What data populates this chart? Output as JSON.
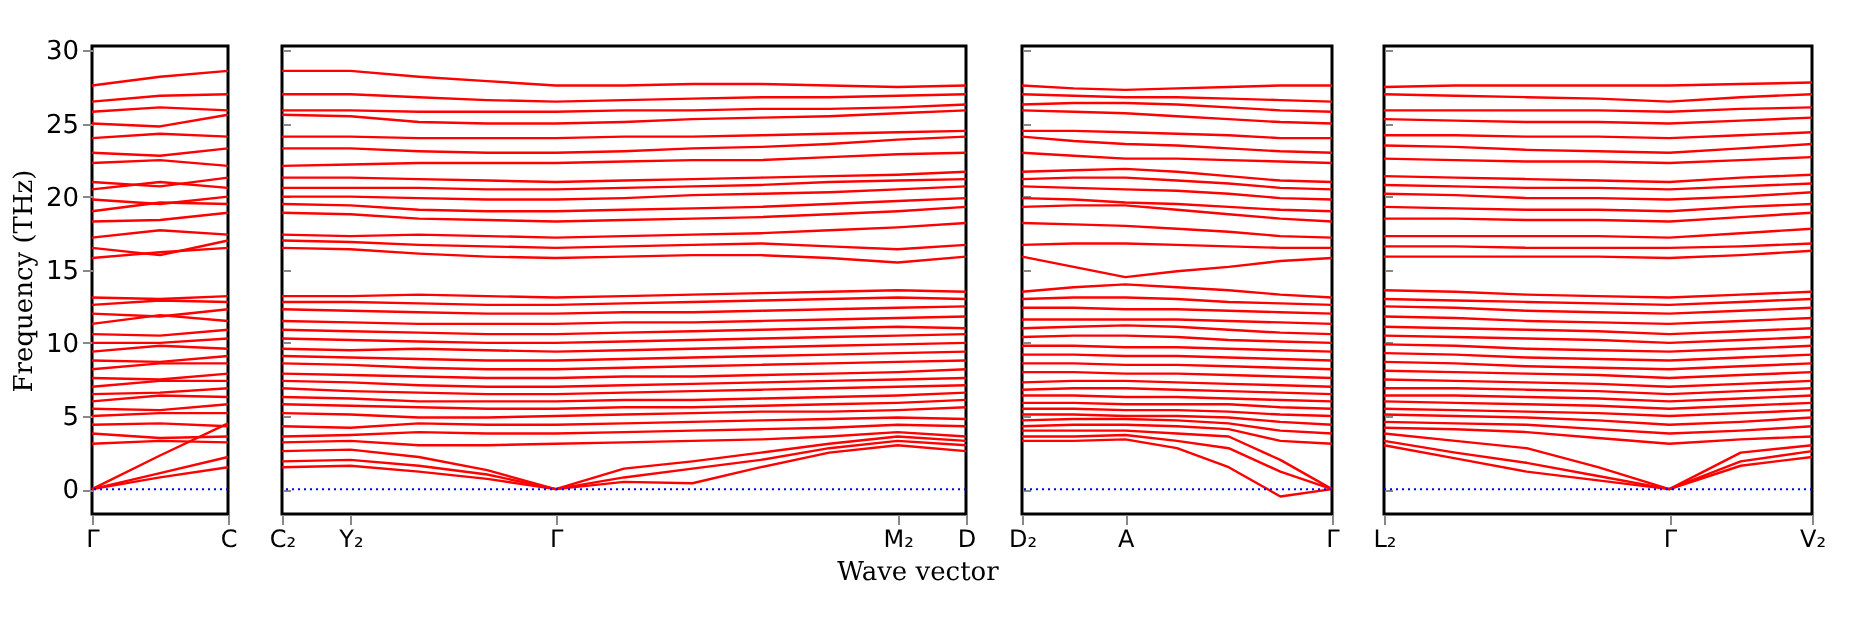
{
  "chart_data": [
    {
      "type": "line",
      "ylabel": "Frequency (THz)",
      "categories": [
        "Γ",
        null,
        "C"
      ],
      "ylim": [
        -1.7,
        30.3
      ],
      "yticks": [
        0,
        5,
        10,
        15,
        20,
        25,
        30
      ],
      "ref_lines": [
        {
          "axis": "y",
          "value": 0,
          "color": "#0000ff",
          "line_style": "dotted"
        }
      ],
      "series": [
        {
          "color": "#ff0000",
          "values": [
            0,
            0.8,
            1.5
          ]
        },
        {
          "color": "#ff0000",
          "values": [
            0,
            1.1,
            2.2
          ]
        },
        {
          "color": "#ff0000",
          "values": [
            0,
            2.3,
            4.5
          ]
        },
        {
          "color": "#ff0000",
          "values": [
            3.1,
            3.3,
            3.2
          ]
        },
        {
          "color": "#ff0000",
          "values": [
            3.8,
            3.5,
            3.6
          ]
        },
        {
          "color": "#ff0000",
          "values": [
            4.4,
            4.5,
            4.3
          ]
        },
        {
          "color": "#ff0000",
          "values": [
            5.0,
            5.2,
            5.2
          ]
        },
        {
          "color": "#ff0000",
          "values": [
            5.5,
            5.4,
            5.8
          ]
        },
        {
          "color": "#ff0000",
          "values": [
            6.0,
            6.4,
            6.3
          ]
        },
        {
          "color": "#ff0000",
          "values": [
            6.5,
            6.6,
            6.9
          ]
        },
        {
          "color": "#ff0000",
          "values": [
            7.0,
            7.4,
            7.4
          ]
        },
        {
          "color": "#ff0000",
          "values": [
            7.6,
            7.5,
            7.9
          ]
        },
        {
          "color": "#ff0000",
          "values": [
            8.2,
            8.6,
            8.6
          ]
        },
        {
          "color": "#ff0000",
          "values": [
            8.8,
            8.7,
            9.1
          ]
        },
        {
          "color": "#ff0000",
          "values": [
            9.4,
            9.8,
            9.6
          ]
        },
        {
          "color": "#ff0000",
          "values": [
            10.0,
            10.0,
            10.3
          ]
        },
        {
          "color": "#ff0000",
          "values": [
            10.6,
            10.5,
            10.9
          ]
        },
        {
          "color": "#ff0000",
          "values": [
            11.3,
            11.9,
            11.5
          ]
        },
        {
          "color": "#ff0000",
          "values": [
            12.0,
            11.8,
            12.3
          ]
        },
        {
          "color": "#ff0000",
          "values": [
            12.6,
            12.9,
            12.8
          ]
        },
        {
          "color": "#ff0000",
          "values": [
            13.1,
            13.0,
            13.2
          ]
        },
        {
          "color": "#ff0000",
          "values": [
            15.8,
            16.2,
            16.5
          ]
        },
        {
          "color": "#ff0000",
          "values": [
            16.5,
            16.0,
            17.0
          ]
        },
        {
          "color": "#ff0000",
          "values": [
            17.2,
            17.7,
            17.4
          ]
        },
        {
          "color": "#ff0000",
          "values": [
            18.3,
            18.4,
            18.9
          ]
        },
        {
          "color": "#ff0000",
          "values": [
            19.0,
            19.6,
            19.5
          ]
        },
        {
          "color": "#ff0000",
          "values": [
            19.8,
            19.5,
            20.0
          ]
        },
        {
          "color": "#ff0000",
          "values": [
            20.5,
            21.0,
            20.6
          ]
        },
        {
          "color": "#ff0000",
          "values": [
            21.0,
            20.7,
            21.3
          ]
        },
        {
          "color": "#ff0000",
          "values": [
            22.3,
            22.5,
            22.1
          ]
        },
        {
          "color": "#ff0000",
          "values": [
            23.0,
            22.8,
            23.3
          ]
        },
        {
          "color": "#ff0000",
          "values": [
            24.0,
            24.3,
            24.1
          ]
        },
        {
          "color": "#ff0000",
          "values": [
            25.0,
            24.8,
            25.6
          ]
        },
        {
          "color": "#ff0000",
          "values": [
            25.8,
            26.1,
            25.9
          ]
        },
        {
          "color": "#ff0000",
          "values": [
            26.5,
            26.9,
            27.0
          ]
        },
        {
          "color": "#ff0000",
          "values": [
            27.6,
            28.2,
            28.6
          ]
        }
      ]
    },
    {
      "type": "line",
      "xlabel": "Wave vector",
      "tick_labels": "x",
      "categories": [
        "C₂",
        "Y₂",
        null,
        null,
        "Γ",
        null,
        null,
        null,
        null,
        "M₂",
        "D"
      ],
      "ylim": [
        -1.7,
        30.3
      ],
      "yticks": [
        0,
        5,
        10,
        15,
        20,
        25,
        30
      ],
      "ref_lines": [
        {
          "axis": "y",
          "value": 0,
          "color": "#0000ff",
          "line_style": "dotted"
        }
      ],
      "series": [
        {
          "color": "#ff0000",
          "values": [
            1.5,
            1.6,
            1.2,
            0.7,
            0,
            0.5,
            0.4,
            1.5,
            2.5,
            3.0,
            2.6
          ]
        },
        {
          "color": "#ff0000",
          "values": [
            1.9,
            2.0,
            1.6,
            1.0,
            0,
            0.8,
            1.4,
            2.0,
            2.8,
            3.3,
            3.0
          ]
        },
        {
          "color": "#ff0000",
          "values": [
            2.6,
            2.7,
            2.2,
            1.3,
            0,
            1.4,
            1.9,
            2.5,
            3.1,
            3.6,
            3.3
          ]
        },
        {
          "color": "#ff0000",
          "values": [
            3.2,
            3.3,
            3.0,
            3.0,
            3.1,
            3.2,
            3.3,
            3.4,
            3.6,
            3.9,
            3.6
          ]
        },
        {
          "color": "#ff0000",
          "values": [
            3.6,
            3.7,
            3.9,
            3.8,
            3.8,
            3.9,
            4.0,
            4.1,
            4.2,
            4.4,
            4.3
          ]
        },
        {
          "color": "#ff0000",
          "values": [
            4.3,
            4.2,
            4.5,
            4.4,
            4.4,
            4.5,
            4.6,
            4.7,
            4.8,
            4.9,
            4.8
          ]
        },
        {
          "color": "#ff0000",
          "values": [
            5.2,
            5.1,
            4.9,
            4.9,
            5.0,
            5.1,
            5.2,
            5.3,
            5.3,
            5.4,
            5.6
          ]
        },
        {
          "color": "#ff0000",
          "values": [
            5.8,
            5.7,
            5.6,
            5.5,
            5.5,
            5.6,
            5.6,
            5.7,
            5.8,
            5.9,
            6.1
          ]
        },
        {
          "color": "#ff0000",
          "values": [
            6.3,
            6.2,
            6.0,
            6.0,
            6.0,
            6.1,
            6.1,
            6.2,
            6.3,
            6.4,
            6.6
          ]
        },
        {
          "color": "#ff0000",
          "values": [
            6.9,
            6.7,
            6.6,
            6.5,
            6.5,
            6.6,
            6.7,
            6.8,
            6.9,
            7.0,
            7.1
          ]
        },
        {
          "color": "#ff0000",
          "values": [
            7.4,
            7.3,
            7.1,
            7.0,
            7.0,
            7.1,
            7.2,
            7.3,
            7.4,
            7.5,
            7.6
          ]
        },
        {
          "color": "#ff0000",
          "values": [
            7.9,
            7.8,
            7.7,
            7.6,
            7.6,
            7.7,
            7.7,
            7.8,
            7.9,
            8.0,
            8.2
          ]
        },
        {
          "color": "#ff0000",
          "values": [
            8.6,
            8.5,
            8.3,
            8.2,
            8.2,
            8.3,
            8.4,
            8.5,
            8.6,
            8.7,
            8.8
          ]
        },
        {
          "color": "#ff0000",
          "values": [
            9.1,
            9.0,
            8.9,
            8.8,
            8.8,
            8.9,
            9.0,
            9.1,
            9.2,
            9.3,
            9.4
          ]
        },
        {
          "color": "#ff0000",
          "values": [
            9.6,
            9.5,
            9.6,
            9.5,
            9.4,
            9.5,
            9.6,
            9.7,
            9.8,
            9.9,
            10.0
          ]
        },
        {
          "color": "#ff0000",
          "values": [
            10.3,
            10.2,
            10.1,
            10.0,
            10.0,
            10.1,
            10.2,
            10.3,
            10.4,
            10.5,
            10.6
          ]
        },
        {
          "color": "#ff0000",
          "values": [
            10.9,
            10.8,
            10.7,
            10.6,
            10.6,
            10.7,
            10.8,
            10.9,
            11.0,
            11.1,
            11.0
          ]
        },
        {
          "color": "#ff0000",
          "values": [
            11.5,
            11.4,
            11.3,
            11.3,
            11.3,
            11.4,
            11.4,
            11.5,
            11.6,
            11.7,
            11.8
          ]
        },
        {
          "color": "#ff0000",
          "values": [
            12.3,
            12.2,
            12.1,
            12.0,
            12.0,
            12.1,
            12.1,
            12.2,
            12.3,
            12.4,
            12.5
          ]
        },
        {
          "color": "#ff0000",
          "values": [
            12.8,
            12.8,
            12.7,
            12.6,
            12.6,
            12.7,
            12.8,
            12.9,
            13.0,
            13.1,
            13.0
          ]
        },
        {
          "color": "#ff0000",
          "values": [
            13.2,
            13.2,
            13.3,
            13.2,
            13.1,
            13.2,
            13.3,
            13.4,
            13.5,
            13.6,
            13.5
          ]
        },
        {
          "color": "#ff0000",
          "values": [
            16.5,
            16.4,
            16.1,
            15.9,
            15.8,
            15.9,
            16.0,
            16.0,
            15.8,
            15.5,
            15.9
          ]
        },
        {
          "color": "#ff0000",
          "values": [
            17.0,
            16.9,
            16.7,
            16.6,
            16.5,
            16.6,
            16.7,
            16.8,
            16.6,
            16.4,
            16.7
          ]
        },
        {
          "color": "#ff0000",
          "values": [
            17.4,
            17.3,
            17.4,
            17.3,
            17.2,
            17.3,
            17.4,
            17.5,
            17.7,
            17.9,
            18.2
          ]
        },
        {
          "color": "#ff0000",
          "values": [
            18.9,
            18.8,
            18.5,
            18.4,
            18.3,
            18.4,
            18.5,
            18.6,
            18.8,
            19.0,
            19.3
          ]
        },
        {
          "color": "#ff0000",
          "values": [
            19.5,
            19.4,
            19.1,
            19.0,
            19.0,
            19.1,
            19.2,
            19.3,
            19.5,
            19.7,
            19.9
          ]
        },
        {
          "color": "#ff0000",
          "values": [
            20.0,
            20.0,
            19.9,
            19.8,
            19.8,
            19.9,
            20.1,
            20.2,
            20.3,
            20.5,
            20.7
          ]
        },
        {
          "color": "#ff0000",
          "values": [
            20.6,
            20.6,
            20.6,
            20.5,
            20.5,
            20.6,
            20.7,
            20.8,
            21.0,
            21.1,
            21.2
          ]
        },
        {
          "color": "#ff0000",
          "values": [
            21.3,
            21.3,
            21.2,
            21.1,
            21.0,
            21.1,
            21.2,
            21.3,
            21.4,
            21.5,
            21.7
          ]
        },
        {
          "color": "#ff0000",
          "values": [
            22.1,
            22.2,
            22.3,
            22.3,
            22.3,
            22.4,
            22.5,
            22.5,
            22.7,
            22.9,
            23.0
          ]
        },
        {
          "color": "#ff0000",
          "values": [
            23.3,
            23.3,
            23.1,
            23.0,
            23.0,
            23.1,
            23.3,
            23.4,
            23.6,
            23.9,
            24.1
          ]
        },
        {
          "color": "#ff0000",
          "values": [
            24.1,
            24.1,
            24.0,
            24.0,
            24.0,
            24.1,
            24.1,
            24.2,
            24.3,
            24.4,
            24.5
          ]
        },
        {
          "color": "#ff0000",
          "values": [
            25.6,
            25.5,
            25.1,
            25.0,
            25.0,
            25.1,
            25.3,
            25.4,
            25.5,
            25.7,
            25.9
          ]
        },
        {
          "color": "#ff0000",
          "values": [
            25.9,
            25.9,
            25.8,
            25.8,
            25.8,
            25.9,
            25.9,
            26.0,
            26.0,
            26.1,
            26.3
          ]
        },
        {
          "color": "#ff0000",
          "values": [
            27.0,
            27.0,
            26.8,
            26.6,
            26.5,
            26.6,
            26.7,
            26.8,
            26.8,
            26.9,
            27.0
          ]
        },
        {
          "color": "#ff0000",
          "values": [
            28.6,
            28.6,
            28.2,
            27.9,
            27.6,
            27.6,
            27.7,
            27.7,
            27.6,
            27.5,
            27.6
          ]
        }
      ]
    },
    {
      "type": "line",
      "tick_labels": "x",
      "categories": [
        "D₂",
        null,
        "A",
        null,
        null,
        null,
        "Γ"
      ],
      "ylim": [
        -1.7,
        30.3
      ],
      "yticks": [
        0,
        5,
        10,
        15,
        20,
        25,
        30
      ],
      "ref_lines": [
        {
          "axis": "y",
          "value": 0,
          "color": "#0000ff",
          "line_style": "dotted"
        }
      ],
      "series": [
        {
          "color": "#ff0000",
          "values": [
            3.3,
            3.3,
            3.4,
            2.8,
            1.5,
            -0.5,
            0
          ]
        },
        {
          "color": "#ff0000",
          "values": [
            3.6,
            3.6,
            3.7,
            3.3,
            2.8,
            1.2,
            0
          ]
        },
        {
          "color": "#ff0000",
          "values": [
            4.0,
            4.0,
            4.0,
            3.8,
            3.6,
            2.0,
            0
          ]
        },
        {
          "color": "#ff0000",
          "values": [
            4.3,
            4.4,
            4.4,
            4.3,
            4.1,
            3.3,
            3.1
          ]
        },
        {
          "color": "#ff0000",
          "values": [
            4.7,
            4.8,
            4.8,
            4.7,
            4.5,
            4.0,
            3.8
          ]
        },
        {
          "color": "#ff0000",
          "values": [
            5.1,
            5.1,
            5.0,
            5.0,
            4.9,
            4.6,
            4.4
          ]
        },
        {
          "color": "#ff0000",
          "values": [
            5.5,
            5.5,
            5.4,
            5.4,
            5.3,
            5.1,
            5.0
          ]
        },
        {
          "color": "#ff0000",
          "values": [
            5.9,
            5.9,
            5.8,
            5.8,
            5.8,
            5.6,
            5.5
          ]
        },
        {
          "color": "#ff0000",
          "values": [
            6.4,
            6.4,
            6.3,
            6.3,
            6.2,
            6.1,
            6.0
          ]
        },
        {
          "color": "#ff0000",
          "values": [
            6.8,
            6.9,
            6.9,
            6.8,
            6.7,
            6.6,
            6.5
          ]
        },
        {
          "color": "#ff0000",
          "values": [
            7.3,
            7.4,
            7.4,
            7.3,
            7.2,
            7.1,
            7.0
          ]
        },
        {
          "color": "#ff0000",
          "values": [
            8.0,
            8.0,
            7.9,
            7.9,
            7.8,
            7.7,
            7.6
          ]
        },
        {
          "color": "#ff0000",
          "values": [
            8.6,
            8.6,
            8.5,
            8.5,
            8.4,
            8.3,
            8.2
          ]
        },
        {
          "color": "#ff0000",
          "values": [
            9.2,
            9.2,
            9.1,
            9.1,
            9.0,
            8.9,
            8.8
          ]
        },
        {
          "color": "#ff0000",
          "values": [
            9.8,
            9.8,
            9.7,
            9.7,
            9.6,
            9.5,
            9.4
          ]
        },
        {
          "color": "#ff0000",
          "values": [
            10.4,
            10.5,
            10.5,
            10.4,
            10.2,
            10.1,
            10.0
          ]
        },
        {
          "color": "#ff0000",
          "values": [
            11.0,
            11.1,
            11.2,
            11.1,
            10.9,
            10.7,
            10.6
          ]
        },
        {
          "color": "#ff0000",
          "values": [
            11.6,
            11.6,
            11.6,
            11.6,
            11.5,
            11.4,
            11.3
          ]
        },
        {
          "color": "#ff0000",
          "values": [
            12.4,
            12.4,
            12.3,
            12.3,
            12.2,
            12.1,
            12.0
          ]
        },
        {
          "color": "#ff0000",
          "values": [
            13.0,
            13.1,
            13.1,
            13.0,
            12.8,
            12.7,
            12.6
          ]
        },
        {
          "color": "#ff0000",
          "values": [
            13.5,
            13.8,
            14.0,
            13.8,
            13.6,
            13.3,
            13.1
          ]
        },
        {
          "color": "#ff0000",
          "values": [
            15.9,
            15.2,
            14.5,
            14.9,
            15.2,
            15.6,
            15.8
          ]
        },
        {
          "color": "#ff0000",
          "values": [
            16.7,
            16.8,
            16.8,
            16.7,
            16.6,
            16.5,
            16.5
          ]
        },
        {
          "color": "#ff0000",
          "values": [
            18.2,
            18.1,
            18.0,
            17.8,
            17.6,
            17.3,
            17.2
          ]
        },
        {
          "color": "#ff0000",
          "values": [
            19.3,
            19.4,
            19.4,
            19.1,
            18.8,
            18.5,
            18.3
          ]
        },
        {
          "color": "#ff0000",
          "values": [
            19.9,
            19.8,
            19.6,
            19.5,
            19.3,
            19.1,
            19.0
          ]
        },
        {
          "color": "#ff0000",
          "values": [
            20.7,
            20.6,
            20.5,
            20.4,
            20.2,
            19.9,
            19.8
          ]
        },
        {
          "color": "#ff0000",
          "values": [
            21.2,
            21.3,
            21.3,
            21.1,
            20.9,
            20.6,
            20.5
          ]
        },
        {
          "color": "#ff0000",
          "values": [
            21.7,
            21.8,
            21.9,
            21.7,
            21.4,
            21.1,
            21.0
          ]
        },
        {
          "color": "#ff0000",
          "values": [
            23.0,
            22.8,
            22.6,
            22.6,
            22.5,
            22.4,
            22.3
          ]
        },
        {
          "color": "#ff0000",
          "values": [
            24.1,
            23.8,
            23.6,
            23.5,
            23.3,
            23.1,
            23.0
          ]
        },
        {
          "color": "#ff0000",
          "values": [
            24.5,
            24.5,
            24.4,
            24.3,
            24.2,
            24.0,
            24.0
          ]
        },
        {
          "color": "#ff0000",
          "values": [
            25.9,
            25.8,
            25.7,
            25.5,
            25.3,
            25.1,
            25.0
          ]
        },
        {
          "color": "#ff0000",
          "values": [
            26.3,
            26.4,
            26.4,
            26.3,
            26.1,
            25.9,
            25.8
          ]
        },
        {
          "color": "#ff0000",
          "values": [
            27.0,
            26.9,
            26.8,
            26.8,
            26.7,
            26.6,
            26.5
          ]
        },
        {
          "color": "#ff0000",
          "values": [
            27.6,
            27.4,
            27.3,
            27.4,
            27.5,
            27.6,
            27.6
          ]
        }
      ]
    },
    {
      "type": "line",
      "tick_labels": "x",
      "categories": [
        "L₂",
        null,
        null,
        null,
        "Γ",
        null,
        "V₂"
      ],
      "ylim": [
        -1.7,
        30.3
      ],
      "yticks": [
        0,
        5,
        10,
        15,
        20,
        25,
        30
      ],
      "ref_lines": [
        {
          "axis": "y",
          "value": 0,
          "color": "#0000ff",
          "line_style": "dotted"
        }
      ],
      "series": [
        {
          "color": "#ff0000",
          "values": [
            3.0,
            2.1,
            1.2,
            0.6,
            0,
            1.6,
            2.2
          ]
        },
        {
          "color": "#ff0000",
          "values": [
            3.3,
            2.5,
            1.8,
            0.9,
            0,
            1.9,
            2.6
          ]
        },
        {
          "color": "#ff0000",
          "values": [
            3.8,
            3.3,
            2.8,
            1.5,
            0,
            2.5,
            3.0
          ]
        },
        {
          "color": "#ff0000",
          "values": [
            4.2,
            4.1,
            3.9,
            3.5,
            3.1,
            3.4,
            3.6
          ]
        },
        {
          "color": "#ff0000",
          "values": [
            4.6,
            4.5,
            4.4,
            4.1,
            3.8,
            4.0,
            4.3
          ]
        },
        {
          "color": "#ff0000",
          "values": [
            5.1,
            5.0,
            4.9,
            4.7,
            4.4,
            4.6,
            4.9
          ]
        },
        {
          "color": "#ff0000",
          "values": [
            5.5,
            5.4,
            5.3,
            5.2,
            5.0,
            5.2,
            5.4
          ]
        },
        {
          "color": "#ff0000",
          "values": [
            6.0,
            5.9,
            5.8,
            5.7,
            5.5,
            5.7,
            5.9
          ]
        },
        {
          "color": "#ff0000",
          "values": [
            6.4,
            6.4,
            6.3,
            6.2,
            6.0,
            6.2,
            6.4
          ]
        },
        {
          "color": "#ff0000",
          "values": [
            6.9,
            6.9,
            6.8,
            6.7,
            6.5,
            6.7,
            6.9
          ]
        },
        {
          "color": "#ff0000",
          "values": [
            7.5,
            7.4,
            7.3,
            7.2,
            7.0,
            7.2,
            7.4
          ]
        },
        {
          "color": "#ff0000",
          "values": [
            8.1,
            8.0,
            7.9,
            7.8,
            7.6,
            7.8,
            8.0
          ]
        },
        {
          "color": "#ff0000",
          "values": [
            8.7,
            8.6,
            8.4,
            8.3,
            8.2,
            8.4,
            8.6
          ]
        },
        {
          "color": "#ff0000",
          "values": [
            9.3,
            9.2,
            9.0,
            8.9,
            8.8,
            9.0,
            9.2
          ]
        },
        {
          "color": "#ff0000",
          "values": [
            9.9,
            9.8,
            9.6,
            9.5,
            9.4,
            9.6,
            9.8
          ]
        },
        {
          "color": "#ff0000",
          "values": [
            10.5,
            10.4,
            10.3,
            10.2,
            10.0,
            10.2,
            10.4
          ]
        },
        {
          "color": "#ff0000",
          "values": [
            11.1,
            11.0,
            10.9,
            10.8,
            10.6,
            10.8,
            11.0
          ]
        },
        {
          "color": "#ff0000",
          "values": [
            11.8,
            11.7,
            11.5,
            11.4,
            11.3,
            11.5,
            11.7
          ]
        },
        {
          "color": "#ff0000",
          "values": [
            12.5,
            12.4,
            12.2,
            12.1,
            12.0,
            12.2,
            12.4
          ]
        },
        {
          "color": "#ff0000",
          "values": [
            13.0,
            12.9,
            12.8,
            12.7,
            12.6,
            12.8,
            13.0
          ]
        },
        {
          "color": "#ff0000",
          "values": [
            13.6,
            13.5,
            13.3,
            13.2,
            13.1,
            13.3,
            13.5
          ]
        },
        {
          "color": "#ff0000",
          "values": [
            15.9,
            15.9,
            15.9,
            15.9,
            15.8,
            16.0,
            16.3
          ]
        },
        {
          "color": "#ff0000",
          "values": [
            16.6,
            16.6,
            16.5,
            16.5,
            16.5,
            16.6,
            16.8
          ]
        },
        {
          "color": "#ff0000",
          "values": [
            17.3,
            17.3,
            17.3,
            17.3,
            17.2,
            17.5,
            17.8
          ]
        },
        {
          "color": "#ff0000",
          "values": [
            18.5,
            18.5,
            18.4,
            18.4,
            18.3,
            18.6,
            18.9
          ]
        },
        {
          "color": "#ff0000",
          "values": [
            19.3,
            19.2,
            19.1,
            19.1,
            19.0,
            19.3,
            19.5
          ]
        },
        {
          "color": "#ff0000",
          "values": [
            20.2,
            20.1,
            19.9,
            19.9,
            19.8,
            20.0,
            20.3
          ]
        },
        {
          "color": "#ff0000",
          "values": [
            20.8,
            20.7,
            20.6,
            20.6,
            20.5,
            20.7,
            20.9
          ]
        },
        {
          "color": "#ff0000",
          "values": [
            21.4,
            21.3,
            21.2,
            21.1,
            21.0,
            21.3,
            21.5
          ]
        },
        {
          "color": "#ff0000",
          "values": [
            22.6,
            22.5,
            22.4,
            22.4,
            22.3,
            22.5,
            22.7
          ]
        },
        {
          "color": "#ff0000",
          "values": [
            23.5,
            23.4,
            23.2,
            23.1,
            23.0,
            23.3,
            23.6
          ]
        },
        {
          "color": "#ff0000",
          "values": [
            24.2,
            24.2,
            24.1,
            24.1,
            24.0,
            24.2,
            24.4
          ]
        },
        {
          "color": "#ff0000",
          "values": [
            25.3,
            25.2,
            25.1,
            25.1,
            25.0,
            25.2,
            25.4
          ]
        },
        {
          "color": "#ff0000",
          "values": [
            25.9,
            25.9,
            25.9,
            25.9,
            25.8,
            26.0,
            26.1
          ]
        },
        {
          "color": "#ff0000",
          "values": [
            27.0,
            26.9,
            26.8,
            26.7,
            26.5,
            26.8,
            27.0
          ]
        },
        {
          "color": "#ff0000",
          "values": [
            27.5,
            27.6,
            27.6,
            27.6,
            27.6,
            27.7,
            27.8
          ]
        }
      ]
    }
  ]
}
